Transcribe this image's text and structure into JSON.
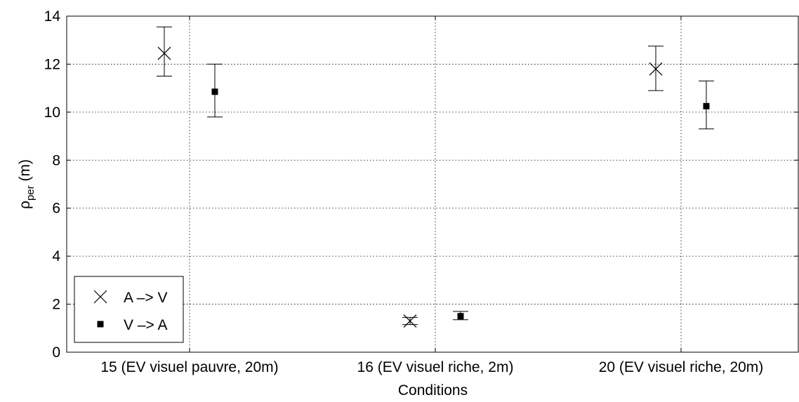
{
  "chart_data": {
    "type": "scatter",
    "title": "",
    "xlabel": "Conditions",
    "ylabel": {
      "main": "ρ",
      "sub": "per",
      "unit": " (m)"
    },
    "categories": [
      "15 (EV visuel pauvre, 20m)",
      "16 (EV visuel riche, 2m)",
      "20 (EV visuel riche, 20m)"
    ],
    "ylim": [
      0,
      14
    ],
    "yticks": [
      "0",
      "2",
      "4",
      "6",
      "8",
      "10",
      "12",
      "14"
    ],
    "grid": true,
    "legend_position": "bottom-left",
    "error_bars": true,
    "series": [
      {
        "name": "A –> V",
        "marker": "x",
        "color": "#000000",
        "values": [
          12.45,
          1.3,
          11.8
        ],
        "err_low": [
          11.5,
          1.15,
          10.9
        ],
        "err_high": [
          13.55,
          1.45,
          12.75
        ]
      },
      {
        "name": "V –> A",
        "marker": "square",
        "color": "#000000",
        "values": [
          10.85,
          1.5,
          10.25
        ],
        "err_low": [
          9.8,
          1.35,
          9.3
        ],
        "err_high": [
          12.0,
          1.7,
          11.3
        ]
      }
    ]
  }
}
